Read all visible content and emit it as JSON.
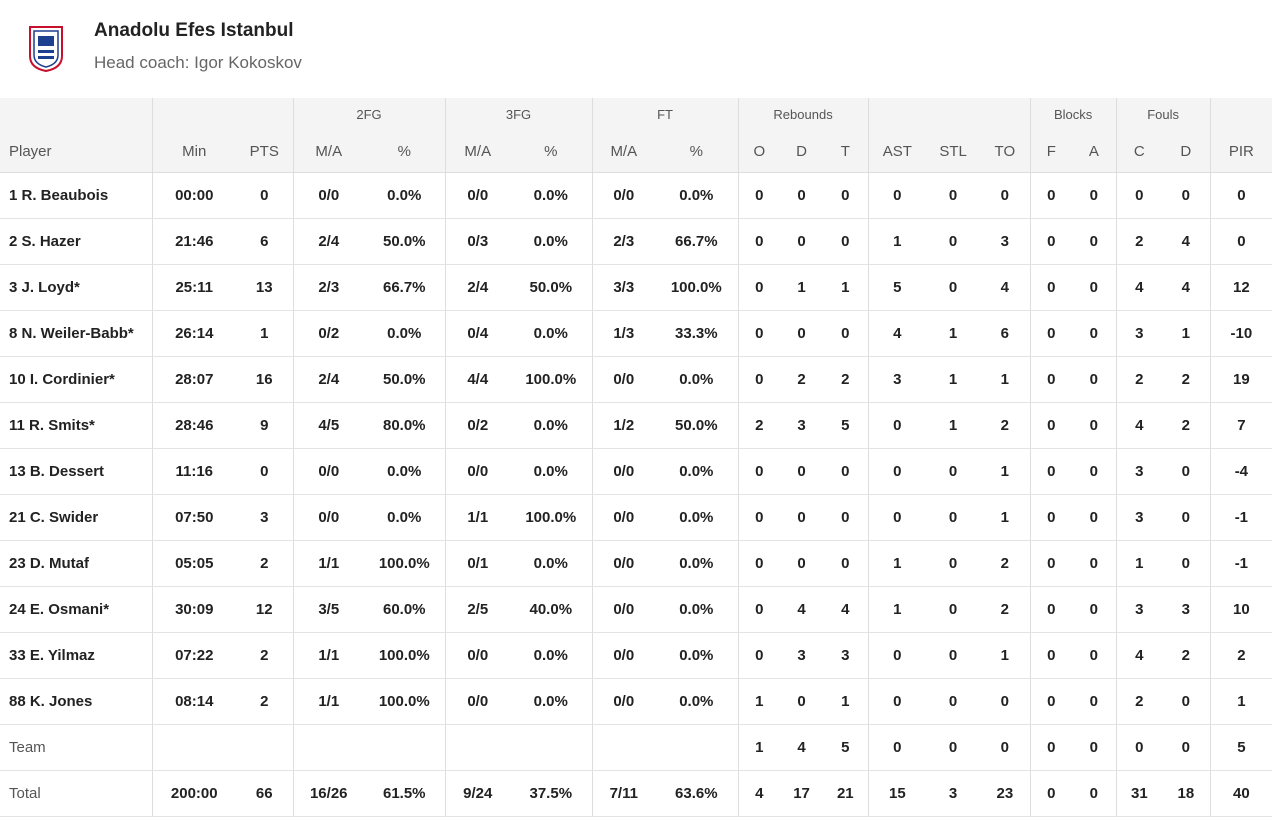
{
  "header": {
    "title": "Anadolu Efes Istanbul",
    "coach": "Head coach: Igor Kokoskov"
  },
  "table": {
    "groups": [
      "2FG",
      "3FG",
      "FT",
      "Rebounds",
      "Blocks",
      "Fouls"
    ],
    "columns": [
      "Player",
      "Min",
      "PTS",
      "M/A",
      "%",
      "M/A",
      "%",
      "M/A",
      "%",
      "O",
      "D",
      "T",
      "AST",
      "STL",
      "TO",
      "F",
      "A",
      "C",
      "D",
      "PIR"
    ],
    "rows": [
      [
        "1 R. Beaubois",
        "00:00",
        "0",
        "0/0",
        "0.0%",
        "0/0",
        "0.0%",
        "0/0",
        "0.0%",
        "0",
        "0",
        "0",
        "0",
        "0",
        "0",
        "0",
        "0",
        "0",
        "0",
        "0"
      ],
      [
        "2 S. Hazer",
        "21:46",
        "6",
        "2/4",
        "50.0%",
        "0/3",
        "0.0%",
        "2/3",
        "66.7%",
        "0",
        "0",
        "0",
        "1",
        "0",
        "3",
        "0",
        "0",
        "2",
        "4",
        "0"
      ],
      [
        "3 J. Loyd*",
        "25:11",
        "13",
        "2/3",
        "66.7%",
        "2/4",
        "50.0%",
        "3/3",
        "100.0%",
        "0",
        "1",
        "1",
        "5",
        "0",
        "4",
        "0",
        "0",
        "4",
        "4",
        "12"
      ],
      [
        "8 N. Weiler-Babb*",
        "26:14",
        "1",
        "0/2",
        "0.0%",
        "0/4",
        "0.0%",
        "1/3",
        "33.3%",
        "0",
        "0",
        "0",
        "4",
        "1",
        "6",
        "0",
        "0",
        "3",
        "1",
        "-10"
      ],
      [
        "10 I. Cordinier*",
        "28:07",
        "16",
        "2/4",
        "50.0%",
        "4/4",
        "100.0%",
        "0/0",
        "0.0%",
        "0",
        "2",
        "2",
        "3",
        "1",
        "1",
        "0",
        "0",
        "2",
        "2",
        "19"
      ],
      [
        "11 R. Smits*",
        "28:46",
        "9",
        "4/5",
        "80.0%",
        "0/2",
        "0.0%",
        "1/2",
        "50.0%",
        "2",
        "3",
        "5",
        "0",
        "1",
        "2",
        "0",
        "0",
        "4",
        "2",
        "7"
      ],
      [
        "13 B. Dessert",
        "11:16",
        "0",
        "0/0",
        "0.0%",
        "0/0",
        "0.0%",
        "0/0",
        "0.0%",
        "0",
        "0",
        "0",
        "0",
        "0",
        "1",
        "0",
        "0",
        "3",
        "0",
        "-4"
      ],
      [
        "21 C. Swider",
        "07:50",
        "3",
        "0/0",
        "0.0%",
        "1/1",
        "100.0%",
        "0/0",
        "0.0%",
        "0",
        "0",
        "0",
        "0",
        "0",
        "1",
        "0",
        "0",
        "3",
        "0",
        "-1"
      ],
      [
        "23 D. Mutaf",
        "05:05",
        "2",
        "1/1",
        "100.0%",
        "0/1",
        "0.0%",
        "0/0",
        "0.0%",
        "0",
        "0",
        "0",
        "1",
        "0",
        "2",
        "0",
        "0",
        "1",
        "0",
        "-1"
      ],
      [
        "24 E. Osmani*",
        "30:09",
        "12",
        "3/5",
        "60.0%",
        "2/5",
        "40.0%",
        "0/0",
        "0.0%",
        "0",
        "4",
        "4",
        "1",
        "0",
        "2",
        "0",
        "0",
        "3",
        "3",
        "10"
      ],
      [
        "33 E. Yilmaz",
        "07:22",
        "2",
        "1/1",
        "100.0%",
        "0/0",
        "0.0%",
        "0/0",
        "0.0%",
        "0",
        "3",
        "3",
        "0",
        "0",
        "1",
        "0",
        "0",
        "4",
        "2",
        "2"
      ],
      [
        "88 K. Jones",
        "08:14",
        "2",
        "1/1",
        "100.0%",
        "0/0",
        "0.0%",
        "0/0",
        "0.0%",
        "1",
        "0",
        "1",
        "0",
        "0",
        "0",
        "0",
        "0",
        "2",
        "0",
        "1"
      ],
      [
        "Team",
        null,
        null,
        null,
        null,
        null,
        null,
        null,
        null,
        "1",
        "4",
        "5",
        "0",
        "0",
        "0",
        "0",
        "0",
        "0",
        "0",
        "5"
      ],
      [
        "Total",
        "200:00",
        "66",
        "16/26",
        "61.5%",
        "9/24",
        "37.5%",
        "7/11",
        "63.6%",
        "4",
        "17",
        "21",
        "15",
        "3",
        "23",
        "0",
        "0",
        "31",
        "18",
        "40"
      ]
    ]
  }
}
